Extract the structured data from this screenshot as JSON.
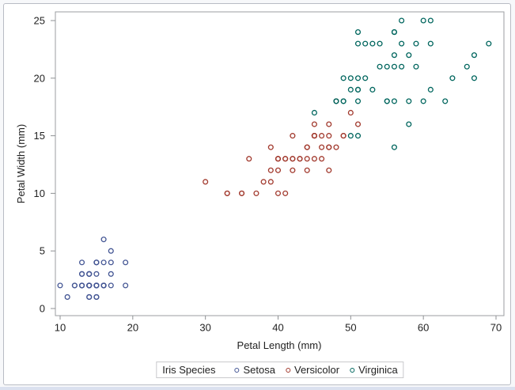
{
  "window": {
    "background": "#f7f8fa",
    "surface": "#ffffff",
    "border_color": "#b9bcc4",
    "bottom_strip_color": "#dbe1ef",
    "frame_color": "#9b9da0",
    "tick_color": "#8f9194",
    "text_color": "#222222"
  },
  "chart_data": {
    "type": "scatter",
    "xlabel": "Petal Length (mm)",
    "ylabel": "Petal Width (mm)",
    "xlim": [
      10,
      70
    ],
    "ylim": [
      0,
      25
    ],
    "x_ticks": [
      10,
      20,
      30,
      40,
      50,
      60,
      70
    ],
    "y_ticks": [
      0,
      5,
      10,
      15,
      20,
      25
    ],
    "grid": false,
    "legend": {
      "title": "Iris Species",
      "position": "bottom"
    },
    "series": [
      {
        "name": "Setosa",
        "color": "#445694",
        "marker": "circle",
        "points": [
          [
            14,
            2
          ],
          [
            14,
            2
          ],
          [
            13,
            2
          ],
          [
            15,
            2
          ],
          [
            14,
            2
          ],
          [
            17,
            4
          ],
          [
            14,
            3
          ],
          [
            15,
            2
          ],
          [
            14,
            2
          ],
          [
            15,
            1
          ],
          [
            15,
            2
          ],
          [
            16,
            2
          ],
          [
            14,
            1
          ],
          [
            11,
            1
          ],
          [
            12,
            2
          ],
          [
            15,
            4
          ],
          [
            13,
            4
          ],
          [
            14,
            3
          ],
          [
            17,
            3
          ],
          [
            15,
            3
          ],
          [
            17,
            2
          ],
          [
            15,
            4
          ],
          [
            10,
            2
          ],
          [
            17,
            5
          ],
          [
            19,
            2
          ],
          [
            16,
            2
          ],
          [
            16,
            4
          ],
          [
            15,
            2
          ],
          [
            14,
            2
          ],
          [
            16,
            2
          ],
          [
            16,
            2
          ],
          [
            15,
            4
          ],
          [
            15,
            1
          ],
          [
            14,
            2
          ],
          [
            15,
            2
          ],
          [
            12,
            2
          ],
          [
            13,
            2
          ],
          [
            14,
            1
          ],
          [
            13,
            2
          ],
          [
            15,
            2
          ],
          [
            13,
            3
          ],
          [
            13,
            3
          ],
          [
            13,
            2
          ],
          [
            16,
            6
          ],
          [
            19,
            4
          ],
          [
            14,
            3
          ],
          [
            16,
            2
          ],
          [
            14,
            2
          ],
          [
            15,
            2
          ],
          [
            14,
            2
          ]
        ]
      },
      {
        "name": "Versicolor",
        "color": "#A23A2E",
        "marker": "circle",
        "points": [
          [
            47,
            14
          ],
          [
            45,
            15
          ],
          [
            49,
            15
          ],
          [
            40,
            13
          ],
          [
            46,
            15
          ],
          [
            45,
            13
          ],
          [
            47,
            16
          ],
          [
            33,
            10
          ],
          [
            46,
            13
          ],
          [
            39,
            14
          ],
          [
            35,
            10
          ],
          [
            42,
            15
          ],
          [
            40,
            10
          ],
          [
            47,
            14
          ],
          [
            36,
            13
          ],
          [
            44,
            14
          ],
          [
            45,
            15
          ],
          [
            41,
            10
          ],
          [
            45,
            15
          ],
          [
            39,
            11
          ],
          [
            48,
            18
          ],
          [
            40,
            13
          ],
          [
            49,
            15
          ],
          [
            47,
            12
          ],
          [
            43,
            13
          ],
          [
            44,
            14
          ],
          [
            48,
            14
          ],
          [
            50,
            17
          ],
          [
            45,
            15
          ],
          [
            35,
            10
          ],
          [
            38,
            11
          ],
          [
            37,
            10
          ],
          [
            39,
            12
          ],
          [
            51,
            16
          ],
          [
            45,
            15
          ],
          [
            45,
            16
          ],
          [
            47,
            15
          ],
          [
            44,
            13
          ],
          [
            41,
            13
          ],
          [
            40,
            13
          ],
          [
            44,
            12
          ],
          [
            46,
            14
          ],
          [
            40,
            12
          ],
          [
            33,
            10
          ],
          [
            42,
            13
          ],
          [
            42,
            12
          ],
          [
            42,
            13
          ],
          [
            43,
            13
          ],
          [
            30,
            11
          ],
          [
            41,
            13
          ]
        ]
      },
      {
        "name": "Virginica",
        "color": "#01665E",
        "marker": "circle",
        "points": [
          [
            60,
            25
          ],
          [
            51,
            19
          ],
          [
            59,
            21
          ],
          [
            56,
            18
          ],
          [
            58,
            22
          ],
          [
            66,
            21
          ],
          [
            45,
            17
          ],
          [
            63,
            18
          ],
          [
            58,
            18
          ],
          [
            61,
            25
          ],
          [
            51,
            20
          ],
          [
            53,
            19
          ],
          [
            55,
            21
          ],
          [
            50,
            20
          ],
          [
            51,
            24
          ],
          [
            53,
            23
          ],
          [
            55,
            18
          ],
          [
            67,
            22
          ],
          [
            69,
            23
          ],
          [
            50,
            15
          ],
          [
            57,
            23
          ],
          [
            49,
            20
          ],
          [
            67,
            20
          ],
          [
            49,
            18
          ],
          [
            57,
            21
          ],
          [
            60,
            18
          ],
          [
            48,
            18
          ],
          [
            49,
            18
          ],
          [
            56,
            21
          ],
          [
            58,
            16
          ],
          [
            61,
            19
          ],
          [
            64,
            20
          ],
          [
            56,
            22
          ],
          [
            51,
            15
          ],
          [
            56,
            14
          ],
          [
            61,
            23
          ],
          [
            56,
            24
          ],
          [
            55,
            18
          ],
          [
            48,
            18
          ],
          [
            54,
            21
          ],
          [
            56,
            24
          ],
          [
            51,
            23
          ],
          [
            51,
            19
          ],
          [
            59,
            23
          ],
          [
            57,
            25
          ],
          [
            52,
            23
          ],
          [
            50,
            19
          ],
          [
            52,
            20
          ],
          [
            54,
            23
          ],
          [
            51,
            18
          ]
        ]
      }
    ]
  }
}
